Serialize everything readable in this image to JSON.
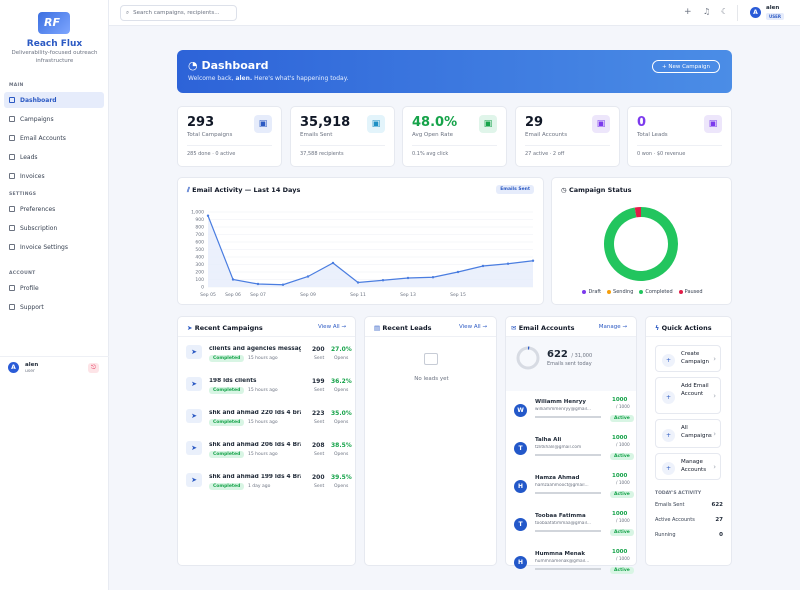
{
  "brand": {
    "name": "Reach Flux",
    "tagline": "Deliverability-focused outreach infrastructure",
    "logo_text": "RF"
  },
  "sidebar": {
    "sections": {
      "main": "MAIN",
      "settings": "SETTINGS",
      "account": "ACCOUNT"
    },
    "main_items": [
      {
        "label": "Dashboard",
        "icon": "dashboard-icon"
      },
      {
        "label": "Campaigns",
        "icon": "send-icon"
      },
      {
        "label": "Email Accounts",
        "icon": "mail-icon"
      },
      {
        "label": "Leads",
        "icon": "leads-icon"
      },
      {
        "label": "Invoices",
        "icon": "invoice-icon"
      }
    ],
    "settings_items": [
      {
        "label": "Preferences",
        "icon": "sliders-icon"
      },
      {
        "label": "Subscription",
        "icon": "card-icon"
      },
      {
        "label": "Invoice Settings",
        "icon": "gear-icon"
      }
    ],
    "account_items": [
      {
        "label": "Profile",
        "icon": "user-icon"
      },
      {
        "label": "Support",
        "icon": "headset-icon"
      }
    ],
    "user": {
      "initial": "A",
      "name": "alen",
      "role": "user"
    }
  },
  "topbar": {
    "search_placeholder": "Search campaigns, recipients...",
    "user": {
      "initial": "A",
      "name": "alen",
      "role": "USER"
    }
  },
  "hero": {
    "title": "Dashboard",
    "subtitle_pre": "Welcome back, ",
    "subtitle_name": "alen.",
    "subtitle_post": " Here's what's happening today.",
    "button": "+ New Campaign"
  },
  "stats": [
    {
      "value": "293",
      "label": "Total Campaigns",
      "sub": "285 done · 0 active",
      "color": "#111827",
      "icon_bg": "#e6ecfb",
      "icon_color": "#2b59c3",
      "icon": "send-icon"
    },
    {
      "value": "35,918",
      "label": "Emails Sent",
      "sub": "37,588 recipients",
      "color": "#111827",
      "icon_bg": "#e3f4fb",
      "icon_color": "#1d8fc4",
      "icon": "mail-icon"
    },
    {
      "value": "48.0%",
      "label": "Avg Open Rate",
      "sub": "0.1% avg click",
      "color": "#16a34a",
      "icon_bg": "#e0f5ea",
      "icon_color": "#16a34a",
      "icon": "open-mail-icon"
    },
    {
      "value": "29",
      "label": "Email Accounts",
      "sub": "27 active · 2 off",
      "color": "#111827",
      "icon_bg": "#ede6fb",
      "icon_color": "#7c3aed",
      "icon": "inbox-icon"
    },
    {
      "value": "0",
      "label": "Total Leads",
      "sub": "0 won · $0 revenue",
      "color": "#7c3aed",
      "icon_bg": "#ede6fb",
      "icon_color": "#7c3aed",
      "icon": "message-icon"
    }
  ],
  "activity": {
    "title": "Email Activity — Last 14 Days",
    "badge": "Emails Sent"
  },
  "chart_data": {
    "type": "area",
    "x": [
      "Sep 05",
      "Sep 06",
      "Sep 07",
      "Sep 08",
      "Sep 09",
      "Sep 10",
      "Sep 11",
      "Sep 12",
      "Sep 13",
      "Sep 14",
      "Sep 15",
      "Sep 16",
      "Sep 17",
      "Sep 18"
    ],
    "x_tick_labels": [
      "Sep 05",
      "Sep 06",
      "Sep 07",
      "Sep 09",
      "Sep 11",
      "Sep 13",
      "Sep 15"
    ],
    "series": [
      {
        "values": [
          950,
          100,
          40,
          30,
          140,
          320,
          60,
          90,
          120,
          130,
          200,
          280,
          310,
          350
        ]
      }
    ],
    "yticks": [
      0,
      100,
      200,
      300,
      400,
      500,
      600,
      700,
      800,
      900,
      1000
    ],
    "ylim": [
      0,
      1000
    ],
    "y_tick_labels": [
      "0",
      "100",
      "200",
      "300",
      "400",
      "500",
      "600",
      "700",
      "800",
      "900",
      "1,000"
    ],
    "color": "#4a7de0",
    "grid": true
  },
  "status": {
    "title": "Campaign Status",
    "legend": [
      {
        "label": "Draft",
        "color": "#7c3aed",
        "value": 0
      },
      {
        "label": "Sending",
        "color": "#f59e0b",
        "value": 0
      },
      {
        "label": "Completed",
        "color": "#22c55e",
        "value": 285
      },
      {
        "label": "Paused",
        "color": "#e11d48",
        "value": 8
      }
    ]
  },
  "recent_campaigns": {
    "title": "Recent Campaigns",
    "link": "View All →",
    "sent_label": "Sent",
    "opens_label": "Opens",
    "items": [
      {
        "name": "clients and agencies message",
        "status": "Completed",
        "time": "15 hours ago",
        "sent": "200",
        "opens": "27.0%"
      },
      {
        "name": "198 lds clients",
        "status": "Completed",
        "time": "15 hours ago",
        "sent": "199",
        "opens": "36.2%"
      },
      {
        "name": "shk and ahmad 220 lds 4 bran...",
        "status": "Completed",
        "time": "15 hours ago",
        "sent": "223",
        "opens": "35.0%"
      },
      {
        "name": "shk and ahmad 206 lds 4 Bran...",
        "status": "Completed",
        "time": "15 hours ago",
        "sent": "208",
        "opens": "38.5%"
      },
      {
        "name": "shk and ahmad 199 lds 4 Bran...",
        "status": "Completed",
        "time": "1 day ago",
        "sent": "200",
        "opens": "39.5%"
      }
    ]
  },
  "recent_leads": {
    "title": "Recent Leads",
    "link": "View All →",
    "empty": "No leads yet"
  },
  "email_accounts": {
    "title": "Email Accounts",
    "link": "Manage →",
    "sent_today": "622",
    "limit": "/ 31,000",
    "caption": "Emails sent today",
    "items": [
      {
        "initial": "W",
        "name": "Wiliamm Henryy",
        "email": "williammmenryy@gmail...",
        "count": "1000",
        "limit": "/ 1000",
        "status": "Active"
      },
      {
        "initial": "T",
        "name": "Talha Ali",
        "email": "tzlitkhalil@gmail.com",
        "count": "1000",
        "limit": "/ 1000",
        "status": "Active"
      },
      {
        "initial": "H",
        "name": "Hamza Ahmad",
        "email": "hamzaahmooct@gmail...",
        "count": "1000",
        "limit": "/ 1000",
        "status": "Active"
      },
      {
        "initial": "T",
        "name": "Toobaa Fatimma",
        "email": "toobaafatimmaa@gmail...",
        "count": "1000",
        "limit": "/ 1000",
        "status": "Active"
      },
      {
        "initial": "H",
        "name": "Hummna Menak",
        "email": "hummnamenak@gmail...",
        "count": "1000",
        "limit": "/ 1000",
        "status": "Active"
      }
    ]
  },
  "quick_actions": {
    "title": "Quick Actions",
    "items": [
      {
        "label": "Create Campaign",
        "icon": "plus-icon"
      },
      {
        "label": "Add Email Account",
        "icon": "mail-icon"
      },
      {
        "label": "All Campaigns",
        "icon": "list-icon"
      },
      {
        "label": "Manage Accounts",
        "icon": "gear-icon"
      }
    ]
  },
  "today": {
    "title": "TODAY'S ACTIVITY",
    "rows": [
      {
        "label": "Emails Sent",
        "value": "622"
      },
      {
        "label": "Active Accounts",
        "value": "27"
      },
      {
        "label": "Running",
        "value": "0"
      }
    ]
  }
}
